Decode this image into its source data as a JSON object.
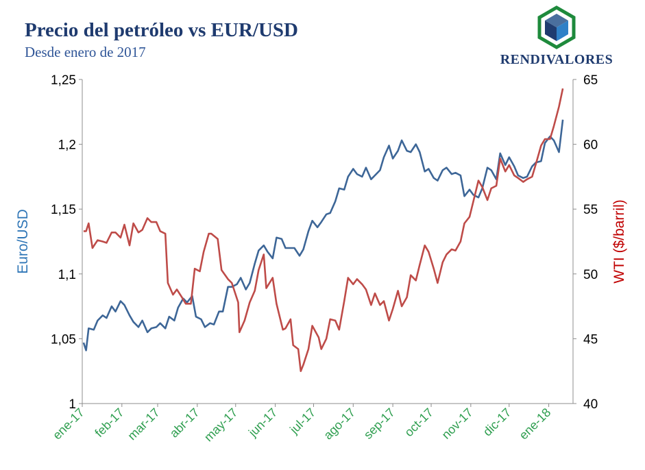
{
  "header": {
    "title": "Precio del petróleo vs EUR/USD",
    "subtitle": "Desde enero de 2017"
  },
  "logo": {
    "text": "RENDIVALORES",
    "icon": "cube-hexagon-icon",
    "colors": {
      "ring": "#1e8a3c",
      "top": "#4a6f9e",
      "left": "#1f3b6f",
      "right": "#2f80c7"
    }
  },
  "chart_data": {
    "type": "line",
    "title": "Precio del petróleo vs EUR/USD",
    "subtitle": "Desde enero de 2017",
    "x": [
      "ene-17",
      "feb-17",
      "mar-17",
      "abr-17",
      "may-17",
      "jun-17",
      "jul-17",
      "ago-17",
      "sep-17",
      "oct-17",
      "nov-17",
      "dic-17",
      "ene-18"
    ],
    "x_tick_labels": [
      "ene-17",
      "feb-17",
      "mar-17",
      "abr-17",
      "may-17",
      "jun-17",
      "jul-17",
      "ago-17",
      "sep-17",
      "oct-17",
      "nov-17",
      "dic-17",
      "ene-18"
    ],
    "y_left": {
      "label": "Euro/USD",
      "range": [
        1,
        1.25
      ],
      "ticks": [
        "1",
        "1,05",
        "1,1",
        "1,15",
        "1,2",
        "1,25"
      ],
      "color": "#2e75b6"
    },
    "y_right": {
      "label": "WTI ($/barril)",
      "range": [
        40,
        65
      ],
      "ticks": [
        "40",
        "45",
        "50",
        "55",
        "60",
        "65"
      ],
      "color": "#c00000"
    },
    "x_tick_color": "#2e9e4f",
    "grid": false,
    "series": [
      {
        "axis": "left",
        "color": "#3d6697",
        "points": [
          [
            "2017-01-02",
            1.047
          ],
          [
            "2017-01-04",
            1.041
          ],
          [
            "2017-01-06",
            1.058
          ],
          [
            "2017-01-10",
            1.057
          ],
          [
            "2017-01-13",
            1.064
          ],
          [
            "2017-01-17",
            1.068
          ],
          [
            "2017-01-20",
            1.066
          ],
          [
            "2017-01-24",
            1.075
          ],
          [
            "2017-01-27",
            1.071
          ],
          [
            "2017-01-31",
            1.079
          ],
          [
            "2017-02-03",
            1.076
          ],
          [
            "2017-02-07",
            1.068
          ],
          [
            "2017-02-10",
            1.063
          ],
          [
            "2017-02-14",
            1.059
          ],
          [
            "2017-02-17",
            1.064
          ],
          [
            "2017-02-21",
            1.055
          ],
          [
            "2017-02-24",
            1.058
          ],
          [
            "2017-02-28",
            1.059
          ],
          [
            "2017-03-03",
            1.062
          ],
          [
            "2017-03-07",
            1.058
          ],
          [
            "2017-03-10",
            1.067
          ],
          [
            "2017-03-14",
            1.064
          ],
          [
            "2017-03-17",
            1.074
          ],
          [
            "2017-03-21",
            1.081
          ],
          [
            "2017-03-24",
            1.078
          ],
          [
            "2017-03-28",
            1.083
          ],
          [
            "2017-03-31",
            1.067
          ],
          [
            "2017-04-04",
            1.065
          ],
          [
            "2017-04-07",
            1.059
          ],
          [
            "2017-04-11",
            1.062
          ],
          [
            "2017-04-14",
            1.061
          ],
          [
            "2017-04-18",
            1.071
          ],
          [
            "2017-04-21",
            1.071
          ],
          [
            "2017-04-25",
            1.09
          ],
          [
            "2017-04-28",
            1.09
          ],
          [
            "2017-05-02",
            1.092
          ],
          [
            "2017-05-05",
            1.097
          ],
          [
            "2017-05-09",
            1.088
          ],
          [
            "2017-05-12",
            1.093
          ],
          [
            "2017-05-16",
            1.108
          ],
          [
            "2017-05-19",
            1.118
          ],
          [
            "2017-05-23",
            1.122
          ],
          [
            "2017-05-26",
            1.117
          ],
          [
            "2017-05-30",
            1.112
          ],
          [
            "2017-06-02",
            1.128
          ],
          [
            "2017-06-06",
            1.127
          ],
          [
            "2017-06-09",
            1.12
          ],
          [
            "2017-06-13",
            1.12
          ],
          [
            "2017-06-16",
            1.12
          ],
          [
            "2017-06-20",
            1.114
          ],
          [
            "2017-06-23",
            1.119
          ],
          [
            "2017-06-27",
            1.133
          ],
          [
            "2017-06-30",
            1.141
          ],
          [
            "2017-07-04",
            1.136
          ],
          [
            "2017-07-07",
            1.14
          ],
          [
            "2017-07-11",
            1.146
          ],
          [
            "2017-07-14",
            1.147
          ],
          [
            "2017-07-18",
            1.156
          ],
          [
            "2017-07-21",
            1.166
          ],
          [
            "2017-07-25",
            1.165
          ],
          [
            "2017-07-28",
            1.175
          ],
          [
            "2017-08-01",
            1.181
          ],
          [
            "2017-08-04",
            1.177
          ],
          [
            "2017-08-08",
            1.175
          ],
          [
            "2017-08-11",
            1.182
          ],
          [
            "2017-08-15",
            1.173
          ],
          [
            "2017-08-18",
            1.176
          ],
          [
            "2017-08-22",
            1.18
          ],
          [
            "2017-08-25",
            1.19
          ],
          [
            "2017-08-29",
            1.199
          ],
          [
            "2017-09-01",
            1.189
          ],
          [
            "2017-09-05",
            1.195
          ],
          [
            "2017-09-08",
            1.203
          ],
          [
            "2017-09-12",
            1.195
          ],
          [
            "2017-09-15",
            1.194
          ],
          [
            "2017-09-19",
            1.2
          ],
          [
            "2017-09-22",
            1.194
          ],
          [
            "2017-09-26",
            1.179
          ],
          [
            "2017-09-29",
            1.181
          ],
          [
            "2017-10-03",
            1.174
          ],
          [
            "2017-10-06",
            1.172
          ],
          [
            "2017-10-10",
            1.18
          ],
          [
            "2017-10-13",
            1.182
          ],
          [
            "2017-10-17",
            1.177
          ],
          [
            "2017-10-20",
            1.178
          ],
          [
            "2017-10-24",
            1.176
          ],
          [
            "2017-10-27",
            1.16
          ],
          [
            "2017-10-31",
            1.165
          ],
          [
            "2017-11-03",
            1.161
          ],
          [
            "2017-11-07",
            1.159
          ],
          [
            "2017-11-10",
            1.166
          ],
          [
            "2017-11-14",
            1.182
          ],
          [
            "2017-11-17",
            1.18
          ],
          [
            "2017-11-21",
            1.173
          ],
          [
            "2017-11-24",
            1.193
          ],
          [
            "2017-11-28",
            1.184
          ],
          [
            "2017-12-01",
            1.19
          ],
          [
            "2017-12-05",
            1.183
          ],
          [
            "2017-12-08",
            1.176
          ],
          [
            "2017-12-12",
            1.174
          ],
          [
            "2017-12-15",
            1.175
          ],
          [
            "2017-12-19",
            1.183
          ],
          [
            "2017-12-22",
            1.186
          ],
          [
            "2017-12-26",
            1.187
          ],
          [
            "2017-12-29",
            1.201
          ],
          [
            "2018-01-02",
            1.206
          ],
          [
            "2018-01-05",
            1.203
          ],
          [
            "2018-01-09",
            1.194
          ],
          [
            "2018-01-12",
            1.219
          ]
        ]
      },
      {
        "axis": "right",
        "color": "#be4b48",
        "points": [
          [
            "2017-01-02",
            53.3
          ],
          [
            "2017-01-04",
            53.3
          ],
          [
            "2017-01-06",
            53.9
          ],
          [
            "2017-01-09",
            52.0
          ],
          [
            "2017-01-11",
            52.3
          ],
          [
            "2017-01-13",
            52.6
          ],
          [
            "2017-01-17",
            52.5
          ],
          [
            "2017-01-20",
            52.4
          ],
          [
            "2017-01-24",
            53.2
          ],
          [
            "2017-01-27",
            53.2
          ],
          [
            "2017-01-31",
            52.8
          ],
          [
            "2017-02-03",
            53.8
          ],
          [
            "2017-02-07",
            52.2
          ],
          [
            "2017-02-10",
            53.9
          ],
          [
            "2017-02-14",
            53.2
          ],
          [
            "2017-02-17",
            53.4
          ],
          [
            "2017-02-21",
            54.3
          ],
          [
            "2017-02-24",
            54.0
          ],
          [
            "2017-02-28",
            54.0
          ],
          [
            "2017-03-03",
            53.3
          ],
          [
            "2017-03-07",
            53.1
          ],
          [
            "2017-03-09",
            49.3
          ],
          [
            "2017-03-13",
            48.4
          ],
          [
            "2017-03-16",
            48.8
          ],
          [
            "2017-03-20",
            48.2
          ],
          [
            "2017-03-23",
            47.7
          ],
          [
            "2017-03-27",
            47.7
          ],
          [
            "2017-03-30",
            50.4
          ],
          [
            "2017-04-03",
            50.2
          ],
          [
            "2017-04-06",
            51.7
          ],
          [
            "2017-04-10",
            53.1
          ],
          [
            "2017-04-12",
            53.1
          ],
          [
            "2017-04-17",
            52.7
          ],
          [
            "2017-04-20",
            50.3
          ],
          [
            "2017-04-25",
            49.6
          ],
          [
            "2017-04-28",
            49.3
          ],
          [
            "2017-05-03",
            47.8
          ],
          [
            "2017-05-04",
            45.5
          ],
          [
            "2017-05-08",
            46.4
          ],
          [
            "2017-05-12",
            47.8
          ],
          [
            "2017-05-16",
            48.7
          ],
          [
            "2017-05-19",
            50.3
          ],
          [
            "2017-05-23",
            51.5
          ],
          [
            "2017-05-25",
            48.9
          ],
          [
            "2017-05-30",
            49.7
          ],
          [
            "2017-06-02",
            47.7
          ],
          [
            "2017-06-07",
            45.7
          ],
          [
            "2017-06-09",
            45.8
          ],
          [
            "2017-06-13",
            46.5
          ],
          [
            "2017-06-15",
            44.5
          ],
          [
            "2017-06-19",
            44.2
          ],
          [
            "2017-06-21",
            42.5
          ],
          [
            "2017-06-23",
            43.0
          ],
          [
            "2017-06-27",
            44.2
          ],
          [
            "2017-06-30",
            46.0
          ],
          [
            "2017-07-05",
            45.1
          ],
          [
            "2017-07-07",
            44.2
          ],
          [
            "2017-07-11",
            45.0
          ],
          [
            "2017-07-14",
            46.5
          ],
          [
            "2017-07-18",
            46.4
          ],
          [
            "2017-07-21",
            45.7
          ],
          [
            "2017-07-25",
            47.9
          ],
          [
            "2017-07-28",
            49.7
          ],
          [
            "2017-08-01",
            49.2
          ],
          [
            "2017-08-04",
            49.6
          ],
          [
            "2017-08-08",
            49.2
          ],
          [
            "2017-08-11",
            48.8
          ],
          [
            "2017-08-15",
            47.6
          ],
          [
            "2017-08-18",
            48.5
          ],
          [
            "2017-08-22",
            47.6
          ],
          [
            "2017-08-25",
            47.9
          ],
          [
            "2017-08-29",
            46.4
          ],
          [
            "2017-09-01",
            47.3
          ],
          [
            "2017-09-05",
            48.7
          ],
          [
            "2017-09-08",
            47.5
          ],
          [
            "2017-09-12",
            48.2
          ],
          [
            "2017-09-15",
            49.9
          ],
          [
            "2017-09-19",
            49.5
          ],
          [
            "2017-09-22",
            50.7
          ],
          [
            "2017-09-26",
            52.2
          ],
          [
            "2017-09-29",
            51.7
          ],
          [
            "2017-10-03",
            50.4
          ],
          [
            "2017-10-06",
            49.3
          ],
          [
            "2017-10-10",
            50.9
          ],
          [
            "2017-10-13",
            51.5
          ],
          [
            "2017-10-17",
            51.9
          ],
          [
            "2017-10-20",
            51.8
          ],
          [
            "2017-10-24",
            52.5
          ],
          [
            "2017-10-27",
            53.9
          ],
          [
            "2017-10-31",
            54.4
          ],
          [
            "2017-11-03",
            55.6
          ],
          [
            "2017-11-07",
            57.2
          ],
          [
            "2017-11-10",
            56.7
          ],
          [
            "2017-11-14",
            55.7
          ],
          [
            "2017-11-17",
            56.6
          ],
          [
            "2017-11-21",
            56.8
          ],
          [
            "2017-11-24",
            58.9
          ],
          [
            "2017-11-28",
            57.9
          ],
          [
            "2017-12-01",
            58.4
          ],
          [
            "2017-12-05",
            57.6
          ],
          [
            "2017-12-08",
            57.4
          ],
          [
            "2017-12-12",
            57.1
          ],
          [
            "2017-12-15",
            57.3
          ],
          [
            "2017-12-19",
            57.5
          ],
          [
            "2017-12-22",
            58.5
          ],
          [
            "2017-12-26",
            59.9
          ],
          [
            "2017-12-29",
            60.4
          ],
          [
            "2018-01-02",
            60.4
          ],
          [
            "2018-01-05",
            61.4
          ],
          [
            "2018-01-09",
            62.9
          ],
          [
            "2018-01-12",
            64.3
          ]
        ]
      }
    ]
  }
}
